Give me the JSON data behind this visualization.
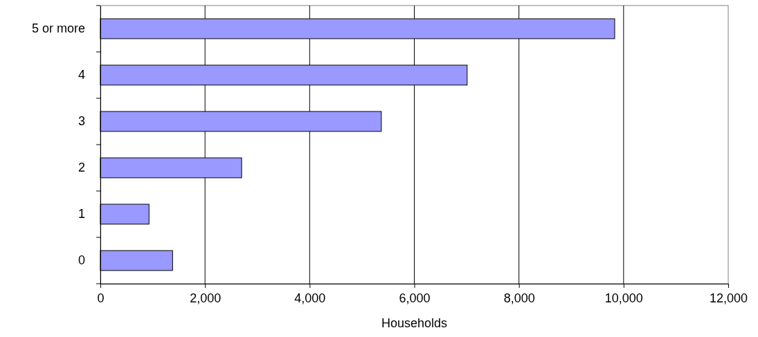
{
  "chart_data": {
    "type": "bar",
    "orientation": "horizontal",
    "xlabel": "Households",
    "categories": [
      "5 or more",
      "4",
      "3",
      "2",
      "1",
      "0"
    ],
    "values": [
      9830,
      7010,
      5370,
      2700,
      930,
      1380
    ],
    "color": "#9999ff",
    "xlim": [
      0,
      12000
    ],
    "xticks": [
      {
        "value": 0,
        "label": "0"
      },
      {
        "value": 2000,
        "label": "2,000"
      },
      {
        "value": 4000,
        "label": "4,000"
      },
      {
        "value": 6000,
        "label": "6,000"
      },
      {
        "value": 8000,
        "label": "8,000"
      },
      {
        "value": 10000,
        "label": "10,000"
      },
      {
        "value": 12000,
        "label": "12,000"
      }
    ],
    "grid": "x"
  }
}
